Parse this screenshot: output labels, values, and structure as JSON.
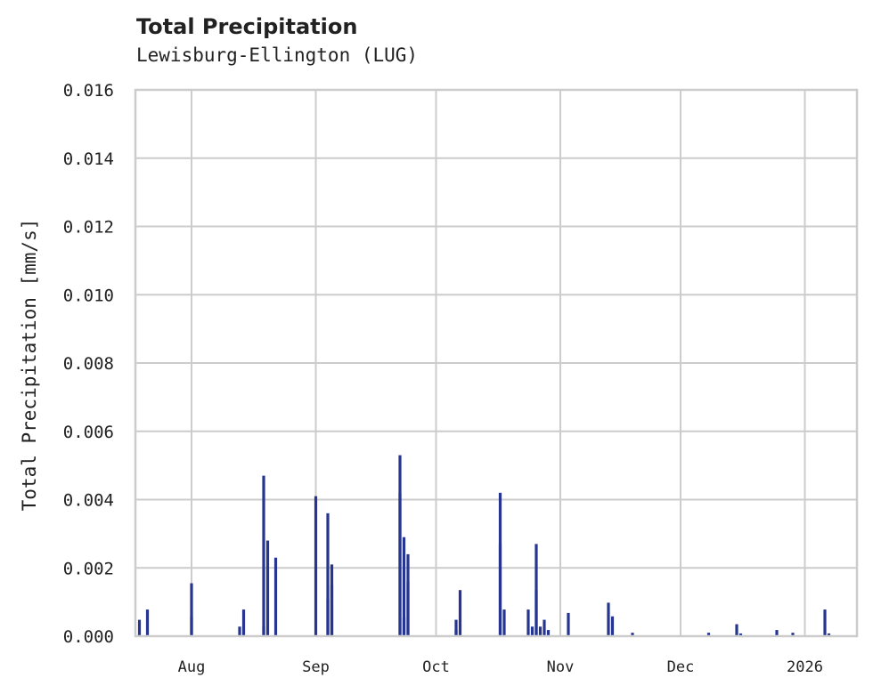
{
  "header": {
    "title": "Total Precipitation",
    "subtitle": "Lewisburg-Ellington (LUG)"
  },
  "colors": {
    "bar": "#26358f",
    "grid": "#cccccc",
    "frame": "#cccccc",
    "text": "#222222"
  },
  "chart_data": {
    "type": "bar",
    "title": "Total Precipitation",
    "subtitle": "Lewisburg-Ellington (LUG)",
    "xlabel": "",
    "ylabel": "Total Precipitation [mm/s]",
    "ylim": [
      0,
      0.016
    ],
    "yticks": [
      "0.000",
      "0.002",
      "0.004",
      "0.006",
      "0.008",
      "0.010",
      "0.012",
      "0.014",
      "0.016"
    ],
    "xticks": [
      "Aug",
      "Sep",
      "Oct",
      "Nov",
      "Dec",
      "2026"
    ],
    "xlim": [
      "2025-07-18",
      "2026-01-14"
    ],
    "grid": true,
    "legend": null,
    "series": [
      {
        "name": "Total Precipitation",
        "points": [
          {
            "date": "2025-07-19",
            "value": 0.00048
          },
          {
            "date": "2025-07-21",
            "value": 0.00078
          },
          {
            "date": "2025-08-01",
            "value": 0.00058
          },
          {
            "date": "2025-08-01",
            "value": 0.00155
          },
          {
            "date": "2025-08-13",
            "value": 0.00028
          },
          {
            "date": "2025-08-14",
            "value": 0.00078
          },
          {
            "date": "2025-08-19",
            "value": 0.00028
          },
          {
            "date": "2025-08-19",
            "value": 0.0047
          },
          {
            "date": "2025-08-20",
            "value": 0.0028
          },
          {
            "date": "2025-08-22",
            "value": 0.0023
          },
          {
            "date": "2025-09-01",
            "value": 0.0041
          },
          {
            "date": "2025-09-04",
            "value": 0.0011
          },
          {
            "date": "2025-09-04",
            "value": 0.0036
          },
          {
            "date": "2025-09-05",
            "value": 0.0021
          },
          {
            "date": "2025-09-05",
            "value": 0.0015
          },
          {
            "date": "2025-09-22",
            "value": 0.0042
          },
          {
            "date": "2025-09-22",
            "value": 0.0053
          },
          {
            "date": "2025-09-23",
            "value": 0.0029
          },
          {
            "date": "2025-09-23",
            "value": 0.00055
          },
          {
            "date": "2025-09-24",
            "value": 0.0016
          },
          {
            "date": "2025-09-24",
            "value": 0.0024
          },
          {
            "date": "2025-10-06",
            "value": 0.00018
          },
          {
            "date": "2025-10-06",
            "value": 0.00048
          },
          {
            "date": "2025-10-07",
            "value": 0.00135
          },
          {
            "date": "2025-10-17",
            "value": 0.0042
          },
          {
            "date": "2025-10-17",
            "value": 0.0027
          },
          {
            "date": "2025-10-18",
            "value": 0.00078
          },
          {
            "date": "2025-10-24",
            "value": 0.00078
          },
          {
            "date": "2025-10-25",
            "value": 0.00028
          },
          {
            "date": "2025-10-26",
            "value": 0.0027
          },
          {
            "date": "2025-10-26",
            "value": 0.00135
          },
          {
            "date": "2025-10-27",
            "value": 0.00028
          },
          {
            "date": "2025-10-28",
            "value": 0.00048
          },
          {
            "date": "2025-10-29",
            "value": 0.00018
          },
          {
            "date": "2025-11-03",
            "value": 0.00068
          },
          {
            "date": "2025-11-13",
            "value": 0.00098
          },
          {
            "date": "2025-11-14",
            "value": 0.00058
          },
          {
            "date": "2025-11-19",
            "value": 0.0001
          },
          {
            "date": "2025-12-08",
            "value": 0.0001
          },
          {
            "date": "2025-12-15",
            "value": 0.00035
          },
          {
            "date": "2025-12-16",
            "value": 8e-05
          },
          {
            "date": "2025-12-25",
            "value": 0.00018
          },
          {
            "date": "2025-12-29",
            "value": 0.0001
          },
          {
            "date": "2026-01-06",
            "value": 0.00078
          },
          {
            "date": "2026-01-07",
            "value": 8e-05
          }
        ]
      }
    ]
  }
}
